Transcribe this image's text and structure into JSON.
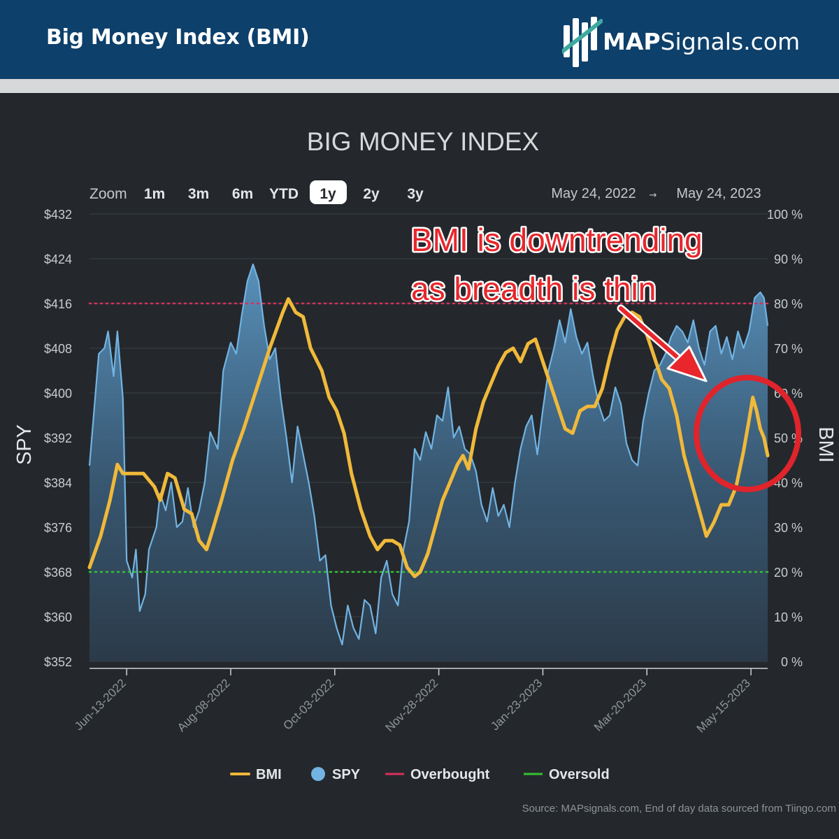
{
  "header": {
    "title": "Big Money Index (BMI)",
    "brand_bold": "MAP",
    "brand_rest": "Signals.com",
    "background": "#0d406b"
  },
  "zoom": {
    "label": "Zoom",
    "options": [
      "1m",
      "3m",
      "6m",
      "YTD",
      "1y",
      "2y",
      "3y"
    ],
    "selected": "1y",
    "range_from": "May 24, 2022",
    "range_arrow": "→",
    "range_to": "May 24, 2023"
  },
  "annotation": {
    "line1": "BMI is downtrending",
    "line2": "as breadth is thin",
    "color": "#e8262b"
  },
  "source": "Source: MAPsignals.com, End of day data sourced from Tiingo.com",
  "chart_data": {
    "type": "line",
    "title": "BIG MONEY INDEX",
    "ylabel_left": "SPY",
    "ylabel_right": "BMI",
    "x": [
      "2022-05-24",
      "2022-06-13",
      "2022-08-08",
      "2022-10-03",
      "2022-11-28",
      "2023-01-23",
      "2023-03-20",
      "2023-05-15",
      "2023-05-24"
    ],
    "x_ticks": [
      "Jun-13-2022",
      "Aug-08-2022",
      "Oct-03-2022",
      "Nov-28-2022",
      "Jan-23-2023",
      "Mar-20-2023",
      "May-15-2023"
    ],
    "y_left_ticks": [
      "$432",
      "$424",
      "$416",
      "$408",
      "$400",
      "$392",
      "$384",
      "$376",
      "$368",
      "$360",
      "$352"
    ],
    "y_right_ticks": [
      "100 %",
      "90 %",
      "80 %",
      "70 %",
      "60 %",
      "50 %",
      "40 %",
      "30 %",
      "20 %",
      "10 %",
      "0 %"
    ],
    "ylim_left": [
      352,
      432
    ],
    "ylim_right": [
      0,
      100
    ],
    "series": [
      {
        "name": "BMI",
        "axis": "right",
        "color": "#f0b93a",
        "points": [
          [
            "2022-05-24",
            21
          ],
          [
            "2022-05-30",
            28
          ],
          [
            "2022-06-04",
            36
          ],
          [
            "2022-06-08",
            44
          ],
          [
            "2022-06-11",
            42
          ],
          [
            "2022-06-22",
            42
          ],
          [
            "2022-06-28",
            39
          ],
          [
            "2022-07-01",
            36
          ],
          [
            "2022-07-05",
            42
          ],
          [
            "2022-07-09",
            41
          ],
          [
            "2022-07-14",
            34
          ],
          [
            "2022-07-18",
            33
          ],
          [
            "2022-07-22",
            27
          ],
          [
            "2022-07-26",
            25
          ],
          [
            "2022-07-29",
            29
          ],
          [
            "2022-08-03",
            36
          ],
          [
            "2022-08-09",
            45
          ],
          [
            "2022-08-15",
            52
          ],
          [
            "2022-08-22",
            61
          ],
          [
            "2022-08-29",
            70
          ],
          [
            "2022-09-05",
            78
          ],
          [
            "2022-09-08",
            81
          ],
          [
            "2022-09-12",
            78
          ],
          [
            "2022-09-16",
            77
          ],
          [
            "2022-09-20",
            70
          ],
          [
            "2022-09-26",
            65
          ],
          [
            "2022-09-30",
            59
          ],
          [
            "2022-10-04",
            56
          ],
          [
            "2022-10-08",
            51
          ],
          [
            "2022-10-12",
            42
          ],
          [
            "2022-10-17",
            34
          ],
          [
            "2022-10-22",
            28
          ],
          [
            "2022-10-26",
            25
          ],
          [
            "2022-10-30",
            27
          ],
          [
            "2022-11-03",
            27
          ],
          [
            "2022-11-07",
            26
          ],
          [
            "2022-11-11",
            21
          ],
          [
            "2022-11-15",
            19
          ],
          [
            "2022-11-18",
            20
          ],
          [
            "2022-11-22",
            24
          ],
          [
            "2022-11-26",
            30
          ],
          [
            "2022-11-30",
            36
          ],
          [
            "2022-12-04",
            40
          ],
          [
            "2022-12-08",
            44
          ],
          [
            "2022-12-11",
            46
          ],
          [
            "2022-12-14",
            43
          ],
          [
            "2022-12-18",
            52
          ],
          [
            "2022-12-22",
            58
          ],
          [
            "2022-12-26",
            62
          ],
          [
            "2022-12-30",
            66
          ],
          [
            "2023-01-03",
            69
          ],
          [
            "2023-01-07",
            70
          ],
          [
            "2023-01-11",
            67
          ],
          [
            "2023-01-15",
            71
          ],
          [
            "2023-01-19",
            72
          ],
          [
            "2023-01-23",
            67
          ],
          [
            "2023-01-27",
            62
          ],
          [
            "2023-01-31",
            57
          ],
          [
            "2023-02-04",
            52
          ],
          [
            "2023-02-08",
            51
          ],
          [
            "2023-02-12",
            56
          ],
          [
            "2023-02-16",
            57
          ],
          [
            "2023-02-20",
            57
          ],
          [
            "2023-02-24",
            61
          ],
          [
            "2023-02-28",
            68
          ],
          [
            "2023-03-04",
            74
          ],
          [
            "2023-03-08",
            77
          ],
          [
            "2023-03-12",
            78
          ],
          [
            "2023-03-16",
            77
          ],
          [
            "2023-03-20",
            73
          ],
          [
            "2023-03-24",
            68
          ],
          [
            "2023-03-28",
            63
          ],
          [
            "2023-04-01",
            61
          ],
          [
            "2023-04-05",
            55
          ],
          [
            "2023-04-09",
            46
          ],
          [
            "2023-04-13",
            40
          ],
          [
            "2023-04-17",
            34
          ],
          [
            "2023-04-21",
            28
          ],
          [
            "2023-04-25",
            31
          ],
          [
            "2023-04-29",
            35
          ],
          [
            "2023-05-03",
            35
          ],
          [
            "2023-05-07",
            39
          ],
          [
            "2023-05-11",
            47
          ],
          [
            "2023-05-14",
            54
          ],
          [
            "2023-05-16",
            59
          ],
          [
            "2023-05-18",
            56
          ],
          [
            "2023-05-20",
            52
          ],
          [
            "2023-05-22",
            50
          ],
          [
            "2023-05-24",
            46
          ]
        ]
      },
      {
        "name": "SPY",
        "axis": "left",
        "color": "#72b3e2",
        "points": [
          [
            "2022-05-24",
            387
          ],
          [
            "2022-05-29",
            407
          ],
          [
            "2022-06-01",
            408
          ],
          [
            "2022-06-03",
            411
          ],
          [
            "2022-06-06",
            403
          ],
          [
            "2022-06-08",
            411
          ],
          [
            "2022-06-11",
            399
          ],
          [
            "2022-06-13",
            370
          ],
          [
            "2022-06-16",
            367
          ],
          [
            "2022-06-18",
            372
          ],
          [
            "2022-06-20",
            361
          ],
          [
            "2022-06-23",
            364
          ],
          [
            "2022-06-25",
            372
          ],
          [
            "2022-06-29",
            376
          ],
          [
            "2022-07-01",
            382
          ],
          [
            "2022-07-04",
            379
          ],
          [
            "2022-07-07",
            384
          ],
          [
            "2022-07-10",
            376
          ],
          [
            "2022-07-13",
            377
          ],
          [
            "2022-07-16",
            383
          ],
          [
            "2022-07-19",
            376
          ],
          [
            "2022-07-22",
            379
          ],
          [
            "2022-07-25",
            384
          ],
          [
            "2022-07-28",
            393
          ],
          [
            "2022-08-01",
            390
          ],
          [
            "2022-08-04",
            404
          ],
          [
            "2022-08-08",
            409
          ],
          [
            "2022-08-11",
            407
          ],
          [
            "2022-08-14",
            414
          ],
          [
            "2022-08-17",
            420
          ],
          [
            "2022-08-20",
            423
          ],
          [
            "2022-08-23",
            420
          ],
          [
            "2022-08-26",
            412
          ],
          [
            "2022-08-29",
            406
          ],
          [
            "2022-09-01",
            408
          ],
          [
            "2022-09-04",
            399
          ],
          [
            "2022-09-07",
            392
          ],
          [
            "2022-09-10",
            384
          ],
          [
            "2022-09-13",
            394
          ],
          [
            "2022-09-16",
            389
          ],
          [
            "2022-09-19",
            384
          ],
          [
            "2022-09-22",
            378
          ],
          [
            "2022-09-25",
            370
          ],
          [
            "2022-09-28",
            371
          ],
          [
            "2022-10-01",
            362
          ],
          [
            "2022-10-04",
            358
          ],
          [
            "2022-10-07",
            355
          ],
          [
            "2022-10-10",
            362
          ],
          [
            "2022-10-13",
            358
          ],
          [
            "2022-10-16",
            356
          ],
          [
            "2022-10-19",
            363
          ],
          [
            "2022-10-22",
            362
          ],
          [
            "2022-10-25",
            357
          ],
          [
            "2022-10-28",
            367
          ],
          [
            "2022-10-31",
            370
          ],
          [
            "2022-11-03",
            364
          ],
          [
            "2022-11-06",
            362
          ],
          [
            "2022-11-09",
            372
          ],
          [
            "2022-11-12",
            377
          ],
          [
            "2022-11-15",
            390
          ],
          [
            "2022-11-18",
            388
          ],
          [
            "2022-11-21",
            393
          ],
          [
            "2022-11-24",
            390
          ],
          [
            "2022-11-27",
            396
          ],
          [
            "2022-11-30",
            395
          ],
          [
            "2022-12-03",
            401
          ],
          [
            "2022-12-06",
            392
          ],
          [
            "2022-12-09",
            394
          ],
          [
            "2022-12-12",
            390
          ],
          [
            "2022-12-15",
            389
          ],
          [
            "2022-12-18",
            386
          ],
          [
            "2022-12-21",
            380
          ],
          [
            "2022-12-24",
            377
          ],
          [
            "2022-12-27",
            383
          ],
          [
            "2022-12-30",
            378
          ],
          [
            "2023-01-02",
            380
          ],
          [
            "2023-01-05",
            376
          ],
          [
            "2023-01-08",
            384
          ],
          [
            "2023-01-11",
            390
          ],
          [
            "2023-01-14",
            394
          ],
          [
            "2023-01-17",
            396
          ],
          [
            "2023-01-20",
            389
          ],
          [
            "2023-01-23",
            397
          ],
          [
            "2023-01-26",
            404
          ],
          [
            "2023-01-29",
            408
          ],
          [
            "2023-02-01",
            413
          ],
          [
            "2023-02-04",
            409
          ],
          [
            "2023-02-07",
            415
          ],
          [
            "2023-02-10",
            410
          ],
          [
            "2023-02-13",
            407
          ],
          [
            "2023-02-16",
            409
          ],
          [
            "2023-02-19",
            403
          ],
          [
            "2023-02-22",
            398
          ],
          [
            "2023-02-25",
            395
          ],
          [
            "2023-02-28",
            396
          ],
          [
            "2023-03-03",
            401
          ],
          [
            "2023-03-06",
            398
          ],
          [
            "2023-03-09",
            391
          ],
          [
            "2023-03-12",
            388
          ],
          [
            "2023-03-15",
            387
          ],
          [
            "2023-03-18",
            395
          ],
          [
            "2023-03-21",
            400
          ],
          [
            "2023-03-24",
            404
          ],
          [
            "2023-03-27",
            405
          ],
          [
            "2023-03-30",
            407
          ],
          [
            "2023-04-02",
            410
          ],
          [
            "2023-04-05",
            412
          ],
          [
            "2023-04-08",
            411
          ],
          [
            "2023-04-11",
            409
          ],
          [
            "2023-04-14",
            413
          ],
          [
            "2023-04-17",
            408
          ],
          [
            "2023-04-20",
            405
          ],
          [
            "2023-04-23",
            411
          ],
          [
            "2023-04-26",
            412
          ],
          [
            "2023-04-29",
            407
          ],
          [
            "2023-05-02",
            410
          ],
          [
            "2023-05-05",
            406
          ],
          [
            "2023-05-08",
            411
          ],
          [
            "2023-05-11",
            408
          ],
          [
            "2023-05-14",
            411
          ],
          [
            "2023-05-17",
            417
          ],
          [
            "2023-05-20",
            418
          ],
          [
            "2023-05-22",
            417
          ],
          [
            "2023-05-24",
            412
          ]
        ]
      }
    ],
    "reference_lines": [
      {
        "name": "Overbought",
        "axis": "right",
        "value": 80,
        "color": "#d9305a"
      },
      {
        "name": "Oversold",
        "axis": "right",
        "value": 20,
        "color": "#34c234"
      }
    ],
    "legend": [
      {
        "name": "BMI",
        "color": "#f0b93a",
        "shape": "line"
      },
      {
        "name": "SPY",
        "color": "#72b3e2",
        "shape": "circle"
      },
      {
        "name": "Overbought",
        "color": "#d9305a",
        "shape": "line"
      },
      {
        "name": "Oversold",
        "color": "#34c234",
        "shape": "line"
      }
    ],
    "legend_position": "bottom-center",
    "grid": "horizontal"
  }
}
